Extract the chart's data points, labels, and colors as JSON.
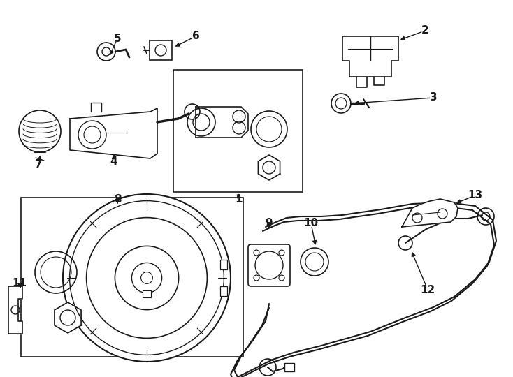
{
  "bg_color": "#ffffff",
  "lc": "#1a1a1a",
  "lw": 1.0,
  "fig_w": 7.34,
  "fig_h": 5.4,
  "dpi": 100
}
